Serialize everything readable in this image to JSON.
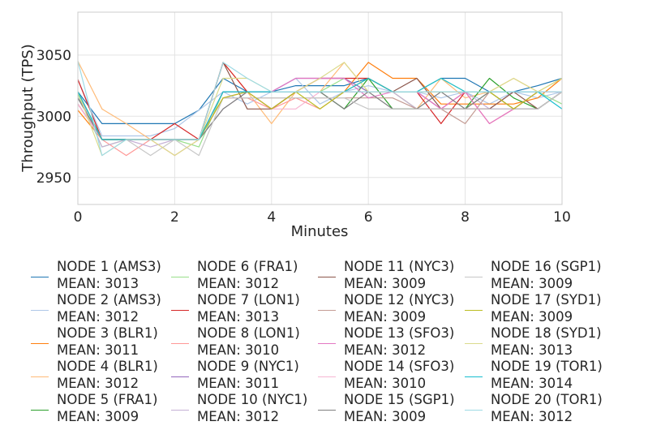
{
  "chart_data": {
    "type": "line",
    "xlabel": "Minutes",
    "ylabel": "Throughput (TPS)",
    "xlim": [
      0,
      10
    ],
    "ylim": [
      2928,
      3085
    ],
    "xticks": [
      "0",
      "2",
      "4",
      "6",
      "8",
      "10"
    ],
    "yticks": [
      "2950",
      "3000",
      "3050"
    ],
    "grid": true,
    "legend_position": "bottom",
    "x": [
      0,
      0.5,
      1,
      1.5,
      2,
      2.5,
      3,
      3.5,
      4,
      4.5,
      5,
      5.5,
      6,
      6.5,
      7,
      7.5,
      8,
      8.5,
      9,
      9.5,
      10
    ],
    "series": [
      {
        "name": "NODE 1 (AMS3)",
        "mean_label": "MEAN: 3013",
        "color": "#1f77b4",
        "values": [
          3020,
          2994,
          2994,
          2994,
          2994,
          3005,
          3031,
          3020,
          3020,
          3025,
          3025,
          3025,
          3031,
          3020,
          3020,
          3031,
          3031,
          3020,
          3020,
          3025,
          3031
        ]
      },
      {
        "name": "NODE 2 (AMS3)",
        "mean_label": "MEAN: 3012",
        "color": "#aec7e8",
        "values": [
          3030,
          2984,
          2984,
          2984,
          2990,
          3005,
          3020,
          3010,
          3020,
          3031,
          3010,
          3020,
          3025,
          3020,
          3020,
          3015,
          3020,
          3010,
          3020,
          3015,
          3020
        ]
      },
      {
        "name": "NODE 3 (BLR1)",
        "mean_label": "MEAN: 3011",
        "color": "#ff7f0e",
        "values": [
          3005,
          2981,
          2981,
          2981,
          2981,
          2981,
          3020,
          3020,
          3020,
          3020,
          3020,
          3020,
          3044,
          3031,
          3031,
          3010,
          3010,
          3010,
          3010,
          3015,
          3031
        ]
      },
      {
        "name": "NODE 4 (BLR1)",
        "mean_label": "MEAN: 3012",
        "color": "#ffbb78",
        "values": [
          3045,
          3006,
          2994,
          2981,
          2981,
          2981,
          3044,
          3020,
          2994,
          3020,
          3020,
          3044,
          3020,
          3020,
          3006,
          3031,
          3015,
          3020,
          3031,
          3020,
          3020
        ]
      },
      {
        "name": "NODE 5 (FRA1)",
        "mean_label": "MEAN: 3009",
        "color": "#2ca02c",
        "values": [
          3015,
          2981,
          2981,
          2981,
          2981,
          2981,
          3015,
          3020,
          3020,
          3020,
          3020,
          3006,
          3031,
          3006,
          3006,
          3006,
          3006,
          3031,
          3015,
          3006,
          3020
        ]
      },
      {
        "name": "NODE 6 (FRA1)",
        "mean_label": "MEAN: 3012",
        "color": "#98df8a",
        "values": [
          3018,
          2975,
          2981,
          2981,
          2981,
          2975,
          3020,
          3020,
          3020,
          3020,
          3020,
          3031,
          3020,
          3020,
          3006,
          3006,
          3006,
          3020,
          3020,
          3020,
          3010
        ]
      },
      {
        "name": "NODE 7 (LON1)",
        "mean_label": "MEAN: 3013",
        "color": "#d62728",
        "values": [
          3030,
          2981,
          2981,
          2981,
          2994,
          2981,
          3044,
          3020,
          3006,
          3020,
          3031,
          3031,
          3031,
          3020,
          3020,
          2994,
          3020,
          3020,
          3020,
          3020,
          3020
        ]
      },
      {
        "name": "NODE 8 (LON1)",
        "mean_label": "MEAN: 3010",
        "color": "#ff9896",
        "values": [
          3010,
          2981,
          2968,
          2981,
          2968,
          2981,
          3015,
          3015,
          3006,
          3015,
          3006,
          3020,
          3020,
          3020,
          3020,
          3006,
          3020,
          2994,
          3006,
          3020,
          3020
        ]
      },
      {
        "name": "NODE 9 (NYC1)",
        "mean_label": "MEAN: 3011",
        "color": "#9467bd",
        "values": [
          3015,
          2981,
          2981,
          2981,
          2981,
          2981,
          3020,
          3020,
          3020,
          3031,
          3031,
          3031,
          3020,
          3020,
          3020,
          3006,
          3006,
          3006,
          3006,
          3006,
          3020
        ]
      },
      {
        "name": "NODE 10 (NYC1)",
        "mean_label": "MEAN: 3012",
        "color": "#c5b0d5",
        "values": [
          3020,
          2975,
          2981,
          2975,
          2981,
          2981,
          3006,
          3020,
          3020,
          3020,
          3020,
          3020,
          3020,
          3020,
          3006,
          3006,
          3020,
          3006,
          3020,
          3020,
          3020
        ]
      },
      {
        "name": "NODE 11 (NYC3)",
        "mean_label": "MEAN: 3009",
        "color": "#8c564b",
        "values": [
          3010,
          2981,
          2981,
          2981,
          2981,
          2981,
          3044,
          3006,
          3006,
          3020,
          3020,
          3020,
          3020,
          3020,
          3031,
          3006,
          3006,
          3006,
          3020,
          3006,
          3020
        ]
      },
      {
        "name": "NODE 12 (NYC3)",
        "mean_label": "MEAN: 3009",
        "color": "#c49c94",
        "values": [
          3010,
          2981,
          2981,
          2981,
          2981,
          2981,
          3015,
          3015,
          3015,
          3015,
          3015,
          3015,
          3015,
          3015,
          3006,
          3006,
          2994,
          3020,
          3006,
          3020,
          3020
        ]
      },
      {
        "name": "NODE 13 (SFO3)",
        "mean_label": "MEAN: 3012",
        "color": "#e377c2",
        "values": [
          3010,
          2981,
          2981,
          2981,
          2981,
          2981,
          3015,
          3020,
          3020,
          3031,
          3031,
          3031,
          3015,
          3020,
          3020,
          3006,
          3020,
          2994,
          3006,
          3020,
          3020
        ]
      },
      {
        "name": "NODE 14 (SFO3)",
        "mean_label": "MEAN: 3010",
        "color": "#f7b6d2",
        "values": [
          3010,
          2981,
          2981,
          2981,
          2981,
          2981,
          3015,
          3020,
          3006,
          3006,
          3020,
          3020,
          3020,
          3020,
          3020,
          3020,
          3020,
          3020,
          3020,
          3020,
          3020
        ]
      },
      {
        "name": "NODE 15 (SGP1)",
        "mean_label": "MEAN: 3009",
        "color": "#7f7f7f",
        "values": [
          3015,
          2981,
          2981,
          2981,
          2981,
          2981,
          3006,
          3020,
          3020,
          3020,
          3020,
          3006,
          3020,
          3006,
          3006,
          3020,
          3006,
          3020,
          3006,
          3006,
          3020
        ]
      },
      {
        "name": "NODE 16 (SGP1)",
        "mean_label": "MEAN: 3009",
        "color": "#c7c7c7",
        "values": [
          3020,
          2981,
          2981,
          2968,
          2981,
          2968,
          3015,
          3015,
          3015,
          3015,
          3015,
          3015,
          3006,
          3006,
          3006,
          3006,
          3006,
          3006,
          3006,
          3006,
          3020
        ]
      },
      {
        "name": "NODE 17 (SYD1)",
        "mean_label": "MEAN: 3009",
        "color": "#bcbd22",
        "values": [
          3020,
          2981,
          2981,
          2981,
          2981,
          2981,
          3015,
          3020,
          3006,
          3020,
          3006,
          3020,
          3031,
          3020,
          3020,
          3020,
          3020,
          3020,
          3006,
          3020,
          3031
        ]
      },
      {
        "name": "NODE 18 (SYD1)",
        "mean_label": "MEAN: 3013",
        "color": "#dbdb8d",
        "values": [
          3020,
          2968,
          2981,
          2981,
          2968,
          2981,
          3031,
          3031,
          3020,
          3020,
          3031,
          3044,
          3020,
          3020,
          3020,
          3031,
          3020,
          3020,
          3031,
          3020,
          3031
        ]
      },
      {
        "name": "NODE 19 (TOR1)",
        "mean_label": "MEAN: 3014",
        "color": "#17becf",
        "values": [
          3020,
          2981,
          2981,
          2981,
          2981,
          2981,
          3020,
          3020,
          3020,
          3020,
          3020,
          3020,
          3031,
          3020,
          3020,
          3031,
          3020,
          3020,
          3020,
          3020,
          3006
        ]
      },
      {
        "name": "NODE 20 (TOR1)",
        "mean_label": "MEAN: 3012",
        "color": "#9edae5",
        "values": [
          3045,
          2968,
          2981,
          2981,
          2981,
          2981,
          3044,
          3031,
          3020,
          3020,
          3020,
          3020,
          3020,
          3020,
          3020,
          3020,
          3020,
          3020,
          3020,
          3020,
          3020
        ]
      }
    ]
  }
}
